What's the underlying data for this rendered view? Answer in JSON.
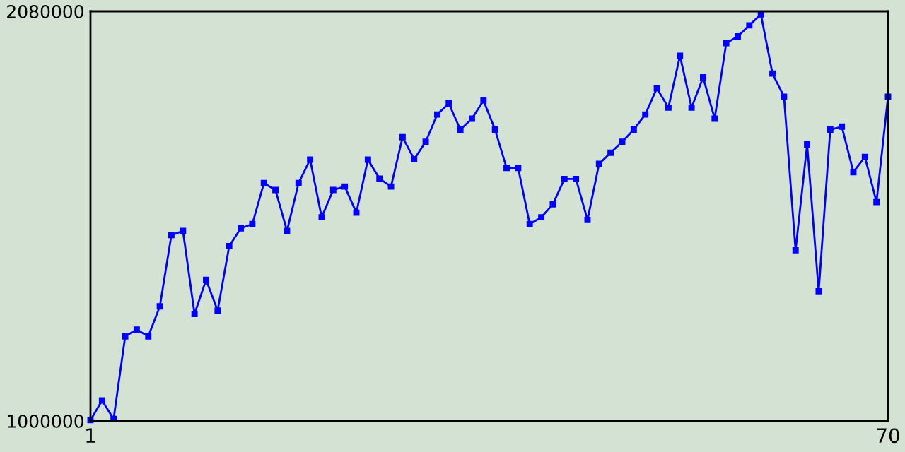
{
  "chart_data": {
    "type": "line",
    "x": [
      1,
      2,
      3,
      4,
      5,
      6,
      7,
      8,
      9,
      10,
      11,
      12,
      13,
      14,
      15,
      16,
      17,
      18,
      19,
      20,
      21,
      22,
      23,
      24,
      25,
      26,
      27,
      28,
      29,
      30,
      31,
      32,
      33,
      34,
      35,
      36,
      37,
      38,
      39,
      40,
      41,
      42,
      43,
      44,
      45,
      46,
      47,
      48,
      49,
      50,
      51,
      52,
      53,
      54,
      55,
      56,
      57,
      58,
      59,
      60,
      61,
      62,
      63,
      64,
      65,
      66,
      67,
      68,
      69,
      70
    ],
    "series": [
      {
        "color": "#0000ff",
        "values": [
          1002000,
          1054000,
          1005000,
          1223000,
          1241000,
          1223000,
          1302000,
          1490000,
          1501000,
          1282000,
          1372000,
          1291000,
          1461000,
          1508000,
          1519000,
          1627000,
          1609000,
          1501000,
          1627000,
          1689000,
          1537000,
          1609000,
          1618000,
          1549000,
          1689000,
          1639000,
          1618000,
          1748000,
          1690000,
          1736000,
          1808000,
          1837000,
          1768000,
          1797000,
          1845000,
          1768000,
          1667000,
          1667000,
          1519000,
          1537000,
          1571000,
          1638000,
          1638000,
          1530000,
          1678000,
          1707000,
          1736000,
          1768000,
          1808000,
          1877000,
          1826000,
          1963000,
          1826000,
          1906000,
          1797000,
          1996000,
          2014000,
          2043000,
          2072000,
          1916000,
          1855000,
          1450000,
          1729000,
          1342000,
          1768000,
          1776000,
          1656000,
          1696000,
          1577000,
          1855000
        ]
      }
    ],
    "xlim": [
      1,
      70
    ],
    "xticks": [
      1,
      70
    ],
    "ylim": [
      1000000,
      2080000
    ],
    "yticks": [
      1000000,
      2080000
    ],
    "marker": "square",
    "line_style": "solid",
    "legend": false
  }
}
